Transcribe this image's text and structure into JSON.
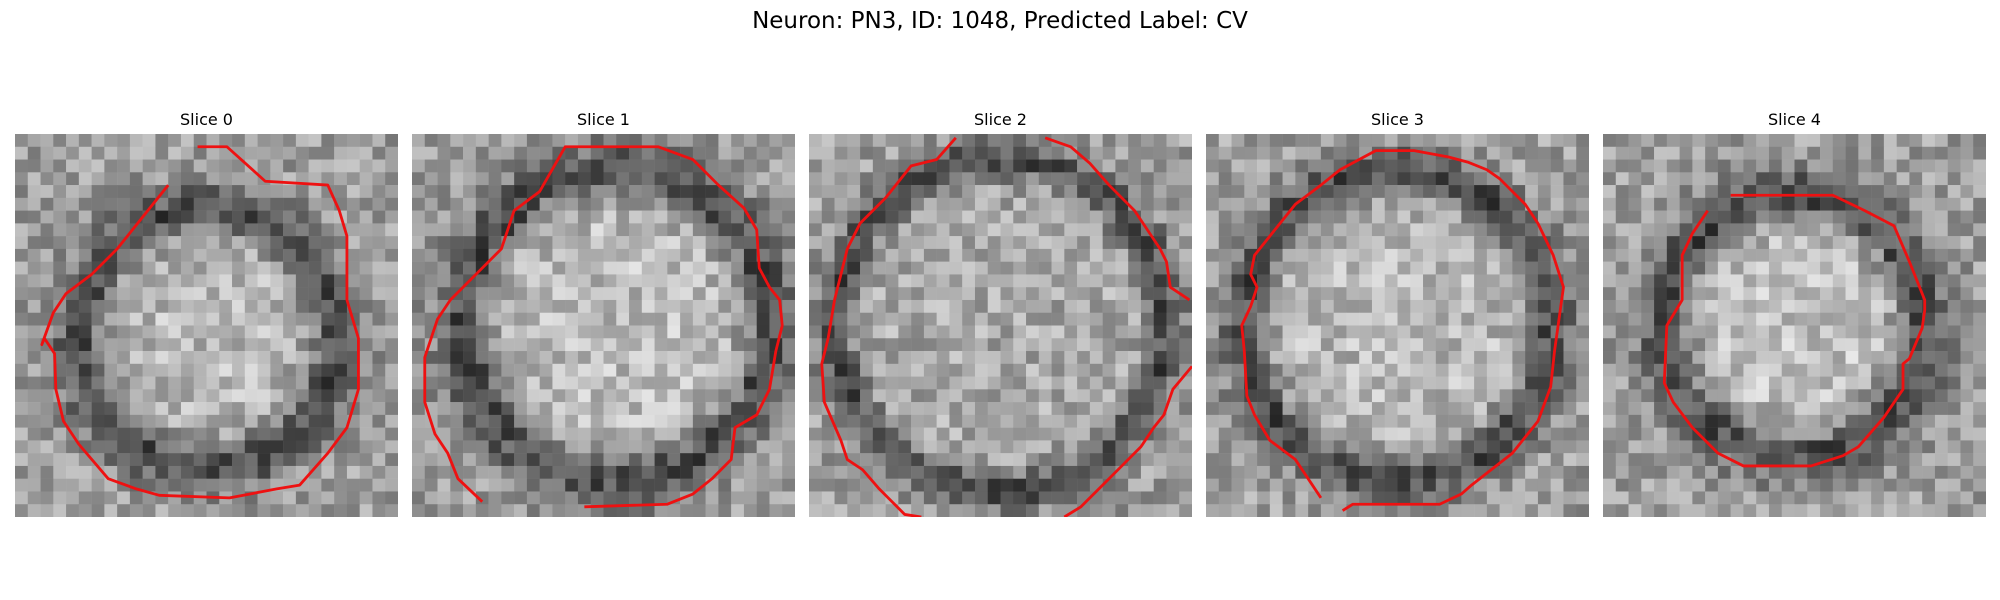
{
  "figure": {
    "title": "Neuron: PN3, ID: 1048, Predicted Label: CV"
  },
  "panels": [
    {
      "title": "Slice 0",
      "slice_index": 0,
      "contour_color": "#ee1111"
    },
    {
      "title": "Slice 1",
      "slice_index": 1,
      "contour_color": "#ee1111"
    },
    {
      "title": "Slice 2",
      "slice_index": 2,
      "contour_color": "#ee1111"
    },
    {
      "title": "Slice 3",
      "slice_index": 3,
      "contour_color": "#ee1111"
    },
    {
      "title": "Slice 4",
      "slice_index": 4,
      "contour_color": "#ee1111"
    }
  ]
}
